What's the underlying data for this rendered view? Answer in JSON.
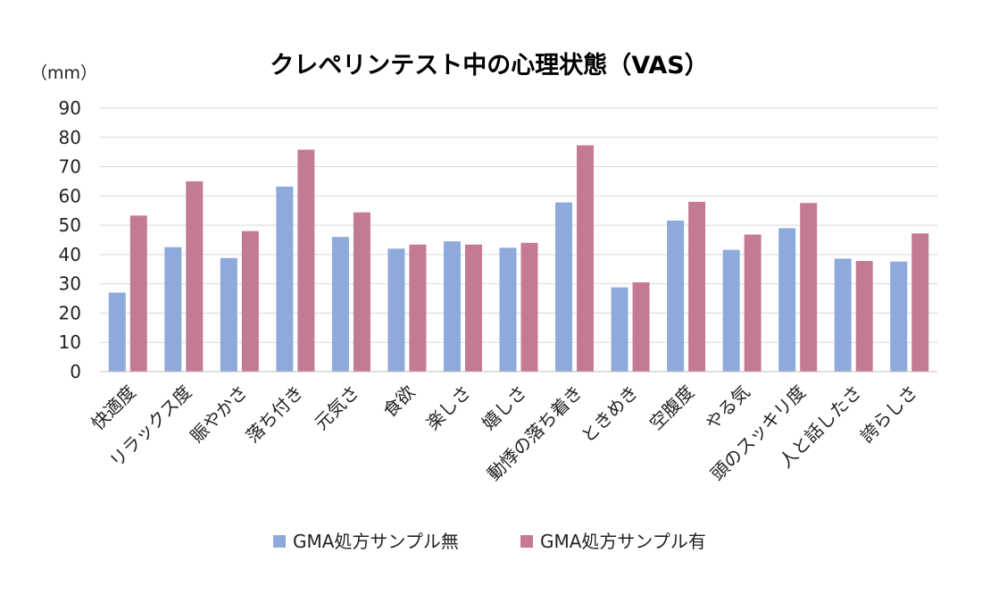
{
  "chart_data": {
    "type": "bar",
    "title": "クレペリンテスト中の心理状態（VAS）",
    "ylabel": "（mm）",
    "xlabel": "",
    "ylim": [
      0,
      90
    ],
    "yticks": [
      0,
      10,
      20,
      30,
      40,
      50,
      60,
      70,
      80,
      90
    ],
    "grid": true,
    "legend_position": "bottom",
    "categories": [
      "快適度",
      "リラックス度",
      "賑やかさ",
      "落ち付き",
      "元気さ",
      "食欲",
      "楽しさ",
      "嬉しさ",
      "動悸の落ち着き",
      "ときめき",
      "空腹度",
      "やる気",
      "頭のスッキリ度",
      "人と話したさ",
      "誇らしさ"
    ],
    "series": [
      {
        "name": "GMA処方サンプル無",
        "color": "#8eaadb",
        "values": [
          27,
          42.5,
          38.8,
          63.2,
          46,
          42,
          44.5,
          42.3,
          57.8,
          28.8,
          51.6,
          41.6,
          49,
          38.6,
          37.6
        ]
      },
      {
        "name": "GMA処方サンプル有",
        "color": "#c47b91",
        "values": [
          53.3,
          65,
          48,
          75.8,
          54.4,
          43.4,
          43.4,
          44,
          77.3,
          30.5,
          58,
          46.8,
          57.6,
          37.8,
          47.2
        ]
      }
    ]
  }
}
